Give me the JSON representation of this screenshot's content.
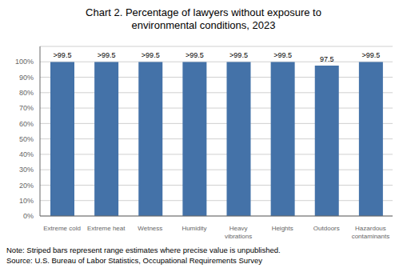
{
  "chart_data": {
    "type": "bar",
    "title": "Chart 2. Percentage of lawyers without exposure to\nenvironmental conditions, 2023",
    "categories": [
      "Extreme cold",
      "Extreme heat",
      "Wetness",
      "Humidity",
      "Heavy\nvibrations",
      "Heights",
      "Outdoors",
      "Hazardous\ncontaminants"
    ],
    "values": [
      99.9,
      99.9,
      99.9,
      99.9,
      99.9,
      99.9,
      97.5,
      99.9
    ],
    "value_labels": [
      ">99.5",
      ">99.5",
      ">99.5",
      ">99.5",
      ">99.5",
      ">99.5",
      "97.5",
      ">99.5"
    ],
    "data_labels": true,
    "color": "#4472A8",
    "ylim": [
      0,
      110
    ],
    "yticks": [
      {
        "value": 0,
        "label": "0%"
      },
      {
        "value": 10,
        "label": "10%"
      },
      {
        "value": 20,
        "label": "20%"
      },
      {
        "value": 30,
        "label": "30%"
      },
      {
        "value": 40,
        "label": "40%"
      },
      {
        "value": 50,
        "label": "50%"
      },
      {
        "value": 60,
        "label": "60%"
      },
      {
        "value": 70,
        "label": "70%"
      },
      {
        "value": 80,
        "label": "80%"
      },
      {
        "value": 90,
        "label": "90%"
      },
      {
        "value": 100,
        "label": "100%"
      }
    ],
    "grid": true,
    "annotations": [
      "Note: Striped bars represent range estimates where precise value is unpublished.",
      "Source: U.S. Bureau of Labor Statistics, Occupational Requirements Survey"
    ]
  }
}
